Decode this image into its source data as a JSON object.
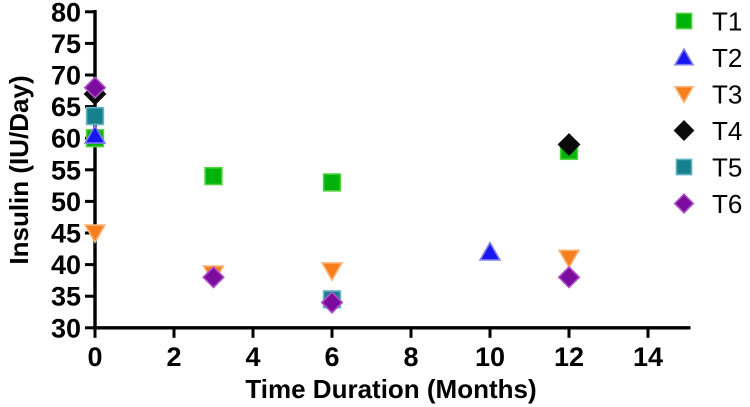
{
  "figure": {
    "background": "#FFFFFF",
    "axis_color": "#000000"
  },
  "chart_data": {
    "type": "scatter",
    "title": "",
    "xlabel": "Time Duration (Months)",
    "ylabel": "Insulin (IU/Day)",
    "xlim": [
      0,
      15
    ],
    "ylim": [
      30,
      80
    ],
    "xticks": [
      0,
      2,
      4,
      6,
      8,
      10,
      12,
      14
    ],
    "yticks": [
      30,
      35,
      40,
      45,
      50,
      55,
      60,
      65,
      70,
      75,
      80
    ],
    "grid": false,
    "legend_position": "right",
    "series": [
      {
        "name": "T1",
        "marker": "square",
        "color": "#00B20A",
        "edge": "#53D13F",
        "points": [
          [
            0,
            60
          ],
          [
            3,
            54
          ],
          [
            6,
            53
          ],
          [
            12,
            58
          ]
        ]
      },
      {
        "name": "T2",
        "marker": "triangle-up",
        "color": "#1A16EF",
        "edge": "#7C7CF0",
        "points": [
          [
            0,
            60.5
          ],
          [
            10,
            42
          ]
        ]
      },
      {
        "name": "T3",
        "marker": "triangle-down",
        "color": "#F87E1D",
        "edge": "#FBB273",
        "points": [
          [
            0,
            45
          ],
          [
            3,
            38.5
          ],
          [
            6,
            39
          ],
          [
            12,
            41
          ]
        ]
      },
      {
        "name": "T4",
        "marker": "diamond",
        "color": "#0A0A0A",
        "edge": "#0A0A0A",
        "points": [
          [
            0,
            67
          ],
          [
            12,
            59
          ]
        ]
      },
      {
        "name": "T5",
        "marker": "square",
        "color": "#17808F",
        "edge": "#64B5C2",
        "points": [
          [
            0,
            63.5
          ],
          [
            6,
            34.5
          ]
        ]
      },
      {
        "name": "T6",
        "marker": "diamond",
        "color": "#7C0C9E",
        "edge": "#AF54C8",
        "points": [
          [
            0,
            68
          ],
          [
            3,
            38
          ],
          [
            6,
            34
          ],
          [
            12,
            38
          ]
        ]
      }
    ]
  }
}
